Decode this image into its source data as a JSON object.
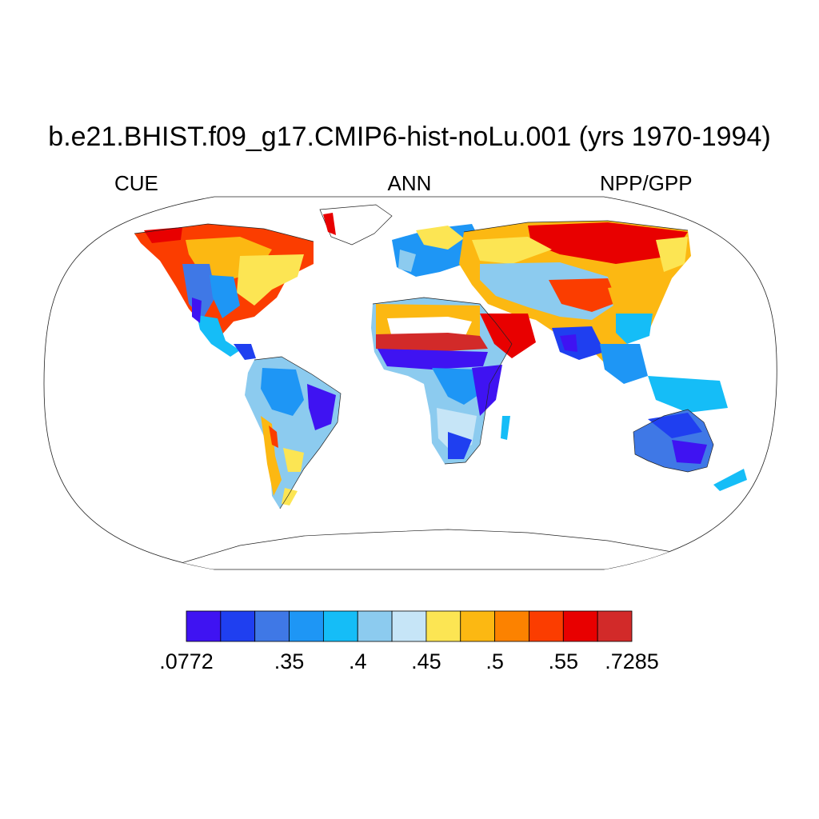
{
  "title": "b.e21.BHIST.f09_g17.CMIP6-hist-noLu.001 (yrs 1970-1994)",
  "subtitle_left": "CUE",
  "subtitle_center": "ANN",
  "subtitle_right": "NPP/GPP",
  "projection": "Robinson",
  "colorbar": {
    "colors": [
      "#3f13f2",
      "#1f3ff0",
      "#3f78e6",
      "#1e96f5",
      "#15bdf7",
      "#8ccbef",
      "#c6e5f7",
      "#fce553",
      "#fcb812",
      "#fc8200",
      "#fb3d00",
      "#e80000",
      "#d22a29"
    ],
    "labels": [
      ".0772",
      ".35",
      ".4",
      ".45",
      ".5",
      ".55",
      ".7285"
    ],
    "label_boundaries": [
      0,
      3,
      5,
      7,
      9,
      11,
      13
    ]
  }
}
